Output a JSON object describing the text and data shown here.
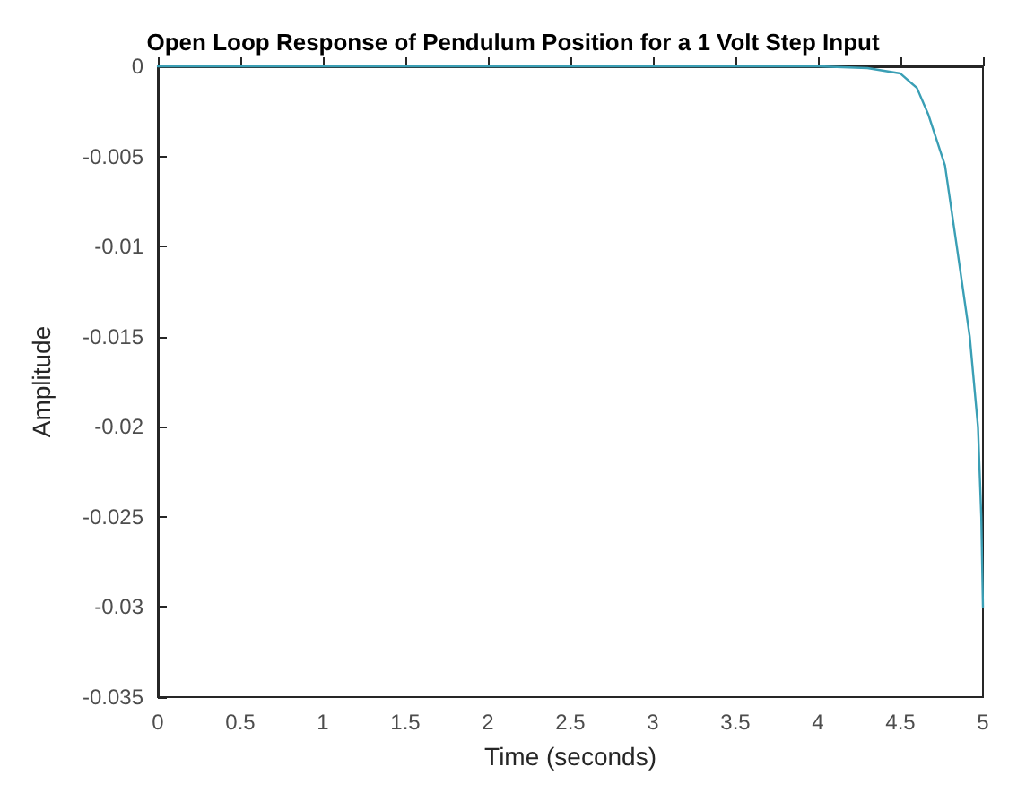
{
  "chart_data": {
    "type": "line",
    "title": "Open Loop Response of Pendulum Position for a 1 Volt Step Input",
    "xlabel": "Time (seconds)",
    "ylabel": "Amplitude",
    "xlim": [
      0,
      5
    ],
    "xticks": [
      0,
      0.5,
      1,
      1.5,
      2,
      2.5,
      3,
      3.5,
      4,
      4.5,
      5
    ],
    "ylim": [
      -0.035,
      0
    ],
    "yticks": [
      -0.035,
      -0.03,
      -0.025,
      -0.02,
      -0.015,
      -0.01,
      -0.005,
      0
    ],
    "grid": false,
    "marker": "none",
    "line_style": "solid",
    "series": [
      {
        "color": "#3a9fb5",
        "x": [
          0,
          1,
          2,
          3,
          4,
          4.3,
          4.5,
          4.6,
          4.67,
          4.77,
          4.84,
          4.92,
          4.97,
          4.99,
          5
        ],
        "values": [
          0,
          0,
          0,
          0,
          0,
          -0.0001,
          -0.0004,
          -0.0012,
          -0.0027,
          -0.0055,
          -0.0099,
          -0.015,
          -0.02,
          -0.025,
          -0.03
        ]
      }
    ]
  }
}
